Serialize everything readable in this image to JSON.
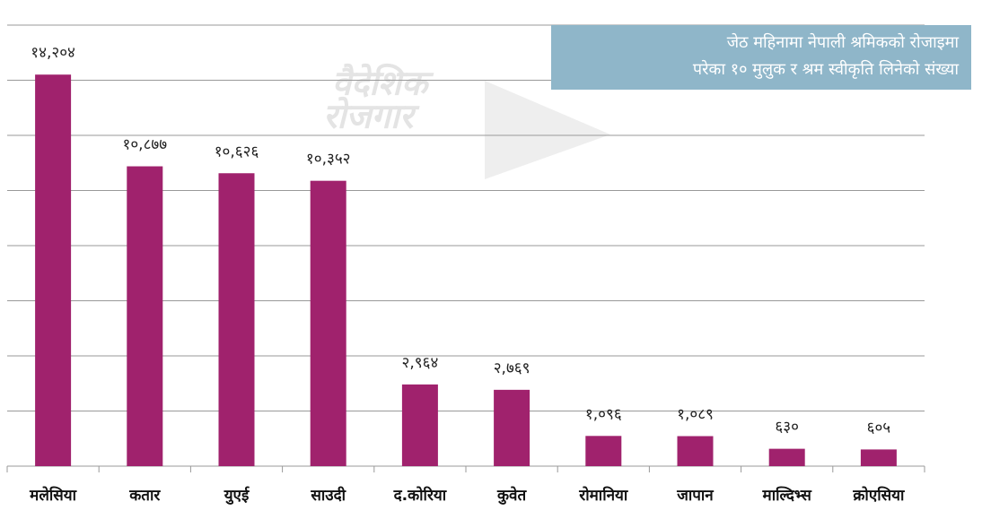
{
  "chart_data": {
    "type": "bar",
    "title_lines": [
      "जेठ महिनामा नेपाली श्रमिकको रोजाइमा",
      "परेका १० मुलुक र श्रम स्वीकृति लिनेको संख्या"
    ],
    "watermark": [
      "वैदेशिक",
      "रोजगार"
    ],
    "categories": [
      "मलेसिया",
      "कतार",
      "युएई",
      "साउदी",
      "द.कोरिया",
      "कुवेत",
      "रोमानिया",
      "जापान",
      "माल्दिभ्स",
      "क्रोएसिया"
    ],
    "values": [
      14204,
      10877,
      10626,
      10352,
      2964,
      2769,
      1096,
      1089,
      630,
      605
    ],
    "value_labels": [
      "१४,२०४",
      "१०,८७७",
      "१०,६२६",
      "१०,३५२",
      "२,९६४",
      "२,७६९",
      "१,०९६",
      "१,०८९",
      "६३०",
      "६०५"
    ],
    "color": "#a0226d",
    "ylim": [
      0,
      16000
    ],
    "yticks": [
      0,
      2000,
      4000,
      6000,
      8000,
      10000,
      12000,
      14000,
      16000
    ],
    "grid": true
  }
}
